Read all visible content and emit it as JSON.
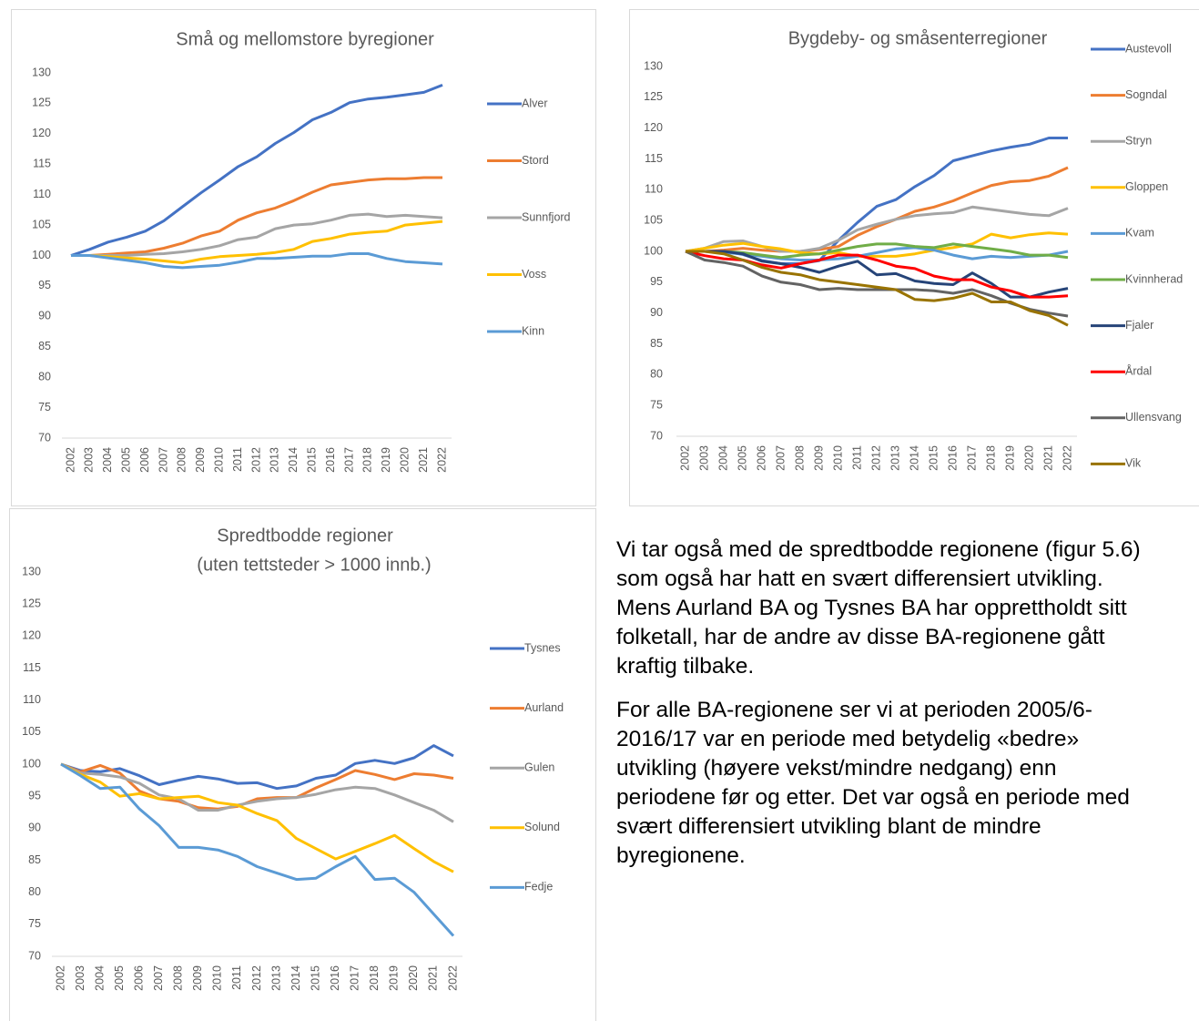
{
  "chart_data": [
    {
      "type": "line",
      "title": "Små og mellomstore byregioner",
      "categories": [
        "2002",
        "2003",
        "2004",
        "2005",
        "2006",
        "2007",
        "2008",
        "2009",
        "2010",
        "2011",
        "2012",
        "2013",
        "2014",
        "2015",
        "2016",
        "2017",
        "2018",
        "2019",
        "2020",
        "2021",
        "2022"
      ],
      "ylim": [
        70,
        130
      ],
      "yticks": [
        70,
        75,
        80,
        85,
        90,
        95,
        100,
        105,
        110,
        115,
        120,
        125,
        130
      ],
      "grid": false,
      "legend": "right",
      "series": [
        {
          "name": "Alver",
          "color": "#4472c4",
          "values": [
            100,
            101,
            102.2,
            103,
            104,
            105.7,
            108,
            110.3,
            112.4,
            114.6,
            116.2,
            118.4,
            120.2,
            122.3,
            123.5,
            125.1,
            125.7,
            126,
            126.4,
            126.8,
            128
          ]
        },
        {
          "name": "Stord",
          "color": "#ed7d31",
          "values": [
            100,
            100,
            100.2,
            100.4,
            100.6,
            101.2,
            102,
            103.2,
            104,
            105.8,
            107,
            107.8,
            109,
            110.4,
            111.6,
            112,
            112.4,
            112.6,
            112.6,
            112.8,
            112.8
          ]
        },
        {
          "name": "Sunnfjord",
          "color": "#a5a5a5",
          "values": [
            100,
            100,
            100,
            100,
            100.2,
            100.3,
            100.6,
            101,
            101.6,
            102.6,
            103,
            104.4,
            105,
            105.2,
            105.8,
            106.6,
            106.8,
            106.4,
            106.6,
            106.4,
            106.2
          ]
        },
        {
          "name": "Voss",
          "color": "#ffc000",
          "values": [
            100,
            100,
            99.8,
            99.6,
            99.4,
            99.1,
            98.8,
            99.4,
            99.8,
            100,
            100.2,
            100.5,
            101,
            102.3,
            102.8,
            103.5,
            103.8,
            104,
            105,
            105.3,
            105.6
          ]
        },
        {
          "name": "Kinn",
          "color": "#5b9bd5",
          "values": [
            100,
            100,
            99.6,
            99.2,
            98.8,
            98.2,
            98,
            98.2,
            98.4,
            98.9,
            99.5,
            99.5,
            99.7,
            99.9,
            99.9,
            100.3,
            100.3,
            99.5,
            99,
            98.8,
            98.6
          ]
        }
      ]
    },
    {
      "type": "line",
      "title": "Bygdeby- og småsenterregioner",
      "categories": [
        "2002",
        "2003",
        "2004",
        "2005",
        "2006",
        "2007",
        "2008",
        "2009",
        "2010",
        "2011",
        "2012",
        "2013",
        "2014",
        "2015",
        "2016",
        "2017",
        "2018",
        "2019",
        "2020",
        "2021",
        "2022"
      ],
      "ylim": [
        70,
        130
      ],
      "yticks": [
        70,
        75,
        80,
        85,
        90,
        95,
        100,
        105,
        110,
        115,
        120,
        125,
        130
      ],
      "grid": false,
      "legend": "right",
      "series": [
        {
          "name": "Austevoll",
          "color": "#4472c4",
          "values": [
            100,
            100,
            100,
            99.5,
            98.5,
            98,
            98,
            98.5,
            101.8,
            104.7,
            107.3,
            108.4,
            110.5,
            112.3,
            114.7,
            115.5,
            116.3,
            116.9,
            117.4,
            118.4,
            118.4
          ]
        },
        {
          "name": "Sogndal",
          "color": "#ed7d31",
          "values": [
            100,
            100,
            100.2,
            100.5,
            100.2,
            100,
            100,
            100.3,
            100.8,
            102.6,
            104,
            105.2,
            106.5,
            107.2,
            108.2,
            109.5,
            110.7,
            111.3,
            111.5,
            112.2,
            113.6
          ]
        },
        {
          "name": "Stryn",
          "color": "#a5a5a5",
          "values": [
            100,
            100.5,
            101.6,
            101.7,
            100.8,
            100,
            100,
            100.5,
            101.8,
            103.5,
            104.4,
            105.2,
            105.8,
            106.1,
            106.3,
            107.2,
            106.8,
            106.4,
            106,
            105.8,
            107
          ]
        },
        {
          "name": "Gloppen",
          "color": "#ffc000",
          "values": [
            100,
            100.5,
            101,
            101.3,
            100.8,
            100.4,
            99.8,
            99.6,
            99.8,
            99.2,
            99.2,
            99.2,
            99.6,
            100.2,
            100.6,
            101.2,
            102.8,
            102.2,
            102.7,
            103,
            102.8
          ]
        },
        {
          "name": "Kvam",
          "color": "#5b9bd5",
          "values": [
            100,
            100,
            99.8,
            99.6,
            99.2,
            98.8,
            98.6,
            98.6,
            98.8,
            99.2,
            99.8,
            100.4,
            100.6,
            100.2,
            99.4,
            98.8,
            99.2,
            99,
            99.2,
            99.4,
            100
          ]
        },
        {
          "name": "Kvinnherad",
          "color": "#70ad47",
          "values": [
            100,
            100,
            100,
            99.8,
            99.4,
            99,
            99.4,
            99.6,
            100.2,
            100.8,
            101.2,
            101.2,
            100.8,
            100.6,
            101.2,
            100.8,
            100.4,
            100,
            99.4,
            99.4,
            99
          ]
        },
        {
          "name": "Fjaler",
          "color": "#264478",
          "values": [
            100,
            100,
            100,
            99.6,
            98.4,
            98,
            97.4,
            96.6,
            97.6,
            98.4,
            96.2,
            96.4,
            95.2,
            94.8,
            94.6,
            96.5,
            94.8,
            92.6,
            92.6,
            93.4,
            94
          ]
        },
        {
          "name": "Årdal",
          "color": "#ff0000",
          "values": [
            100,
            99.3,
            98.8,
            98.6,
            97.8,
            97.3,
            98,
            98.6,
            99.4,
            99.4,
            98.6,
            97.6,
            97.2,
            96,
            95.4,
            95.4,
            94.2,
            93.6,
            92.6,
            92.6,
            92.8
          ]
        },
        {
          "name": "Ullensvang",
          "color": "#636363",
          "values": [
            100,
            98.6,
            98.2,
            97.6,
            96,
            95,
            94.6,
            93.8,
            94,
            93.8,
            93.8,
            93.8,
            93.8,
            93.6,
            93.2,
            93.8,
            92.8,
            91.6,
            90.6,
            90,
            89.5
          ]
        },
        {
          "name": "Vik",
          "color": "#997300",
          "values": [
            100,
            100,
            99.6,
            98.6,
            97.4,
            96.6,
            96.2,
            95.4,
            95,
            94.6,
            94.2,
            93.8,
            92.2,
            92,
            92.4,
            93.2,
            91.8,
            91.8,
            90.4,
            89.6,
            88
          ]
        }
      ]
    },
    {
      "type": "line",
      "title": "Spredtbodde regioner",
      "subtitle": "(uten tettsteder > 1000 innb.)",
      "categories": [
        "2002",
        "2003",
        "2004",
        "2005",
        "2006",
        "2007",
        "2008",
        "2009",
        "2010",
        "2011",
        "2012",
        "2013",
        "2014",
        "2015",
        "2016",
        "2017",
        "2018",
        "2019",
        "2020",
        "2021",
        "2022"
      ],
      "ylim": [
        70,
        130
      ],
      "yticks": [
        70,
        75,
        80,
        85,
        90,
        95,
        100,
        105,
        110,
        115,
        120,
        125,
        130
      ],
      "grid": false,
      "legend": "right",
      "series": [
        {
          "name": "Tysnes",
          "color": "#4472c4",
          "values": [
            100,
            99,
            98.8,
            99.3,
            98.2,
            96.8,
            97.5,
            98.1,
            97.7,
            97,
            97.1,
            96.2,
            96.6,
            97.8,
            98.3,
            100.1,
            100.6,
            100.1,
            101,
            102.9,
            101.3
          ]
        },
        {
          "name": "Aurland",
          "color": "#ed7d31",
          "values": [
            100,
            98.8,
            99.8,
            98.6,
            95.8,
            94.6,
            94.2,
            93.2,
            93,
            93.4,
            94.6,
            94.8,
            94.8,
            96.3,
            97.6,
            99,
            98.4,
            97.6,
            98.5,
            98.3,
            97.8
          ]
        },
        {
          "name": "Gulen",
          "color": "#a5a5a5",
          "values": [
            100,
            98.6,
            98.4,
            98,
            97,
            95.2,
            94.6,
            92.8,
            92.8,
            93.6,
            94.2,
            94.6,
            94.8,
            95.3,
            96,
            96.4,
            96.2,
            95.2,
            94,
            92.8,
            91
          ]
        },
        {
          "name": "Solund",
          "color": "#ffc000",
          "values": [
            100,
            98.4,
            97.2,
            95,
            95.4,
            94.6,
            94.8,
            95,
            94,
            93.6,
            92.3,
            91.2,
            88.4,
            86.8,
            85.2,
            86.4,
            87.6,
            88.9,
            86.8,
            84.8,
            83.2
          ]
        },
        {
          "name": "Fedje",
          "color": "#5b9bd5",
          "values": [
            100,
            98.2,
            96.2,
            96.4,
            93,
            90.4,
            87,
            87,
            86.6,
            85.6,
            84,
            83,
            82,
            82.2,
            84,
            85.6,
            82,
            82.2,
            80,
            76.6,
            73.2
          ]
        }
      ]
    }
  ],
  "text_block": {
    "paragraphs": [
      "Vi tar også med de spredtbodde regionene (figur 5.6) som også har hatt en svært differensiert utvikling. Mens Aurland BA og Tysnes BA har opprettholdt sitt folketall, har de andre av disse BA-regionene gått kraftig tilbake.",
      "For alle BA-regionene ser vi at perioden 2005/6-2016/17 var en periode med betydelig «bedre» utvikling (høyere vekst/mindre nedgang) enn periodene før og etter. Det var også en periode med svært differensiert utvikling blant de mindre byregionene."
    ]
  }
}
